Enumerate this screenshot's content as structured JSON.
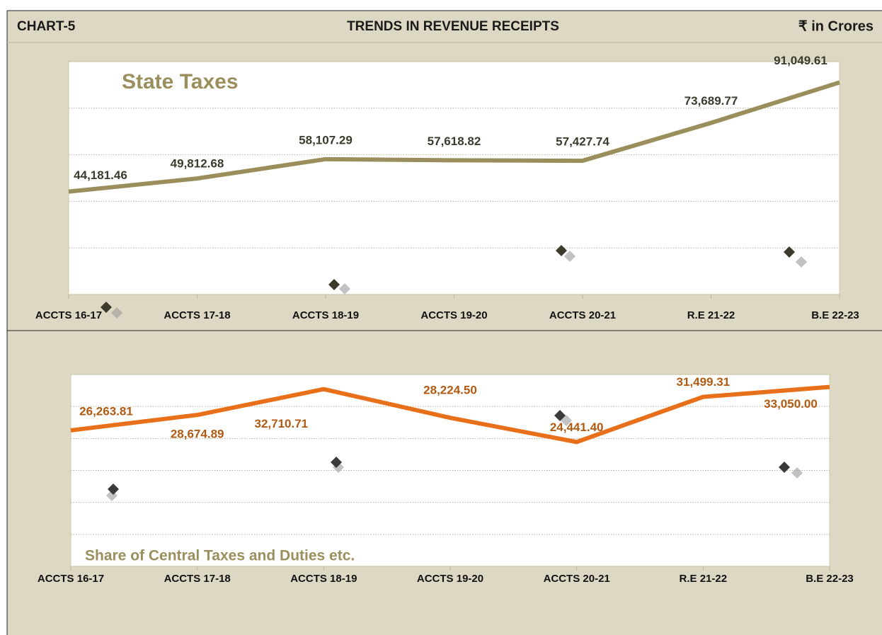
{
  "header": {
    "label": "CHART-5",
    "title": "TRENDS IN REVENUE RECEIPTS",
    "unit": "₹ in Crores"
  },
  "chart_data": [
    {
      "type": "line",
      "title": "State Taxes",
      "categories": [
        "ACCTS 16-17",
        "ACCTS 17-18",
        "ACCTS 18-19",
        "ACCTS 19-20",
        "ACCTS 20-21",
        "R.E 21-22",
        "B.E 22-23"
      ],
      "values": [
        44181.46,
        49812.68,
        58107.29,
        57618.82,
        57427.74,
        73689.77,
        91049.61
      ],
      "value_labels": [
        "44,181.46",
        "49,812.68",
        "58,107.29",
        "57,618.82",
        "57,427.74",
        "73,689.77",
        "91,049.61"
      ],
      "color": "#9a8f5c",
      "label_color": "#3b3a2c",
      "ylim": [
        0,
        100000
      ],
      "yticks": [
        0,
        20000,
        40000,
        60000,
        80000,
        100000
      ],
      "grid": true
    },
    {
      "type": "line",
      "title": "Share of Central Taxes and Duties etc.",
      "categories": [
        "ACCTS 16-17",
        "ACCTS 17-18",
        "ACCTS 18-19",
        "ACCTS 19-20",
        "ACCTS 20-21",
        "R.E 21-22",
        "B.E 22-23"
      ],
      "values": [
        26263.81,
        28674.89,
        32710.71,
        28224.5,
        24441.4,
        31499.31,
        33050.0
      ],
      "value_labels": [
        "26,263.81",
        "28,674.89",
        "32,710.71",
        "28,224.50",
        "24,441.40",
        "31,499.31",
        "33,050.00"
      ],
      "color": "#e8701a",
      "label_color": "#b15a12",
      "ylim": [
        5000,
        35000
      ],
      "yticks": [
        5000,
        10000,
        15000,
        20000,
        25000,
        30000,
        35000
      ],
      "grid": true
    }
  ]
}
